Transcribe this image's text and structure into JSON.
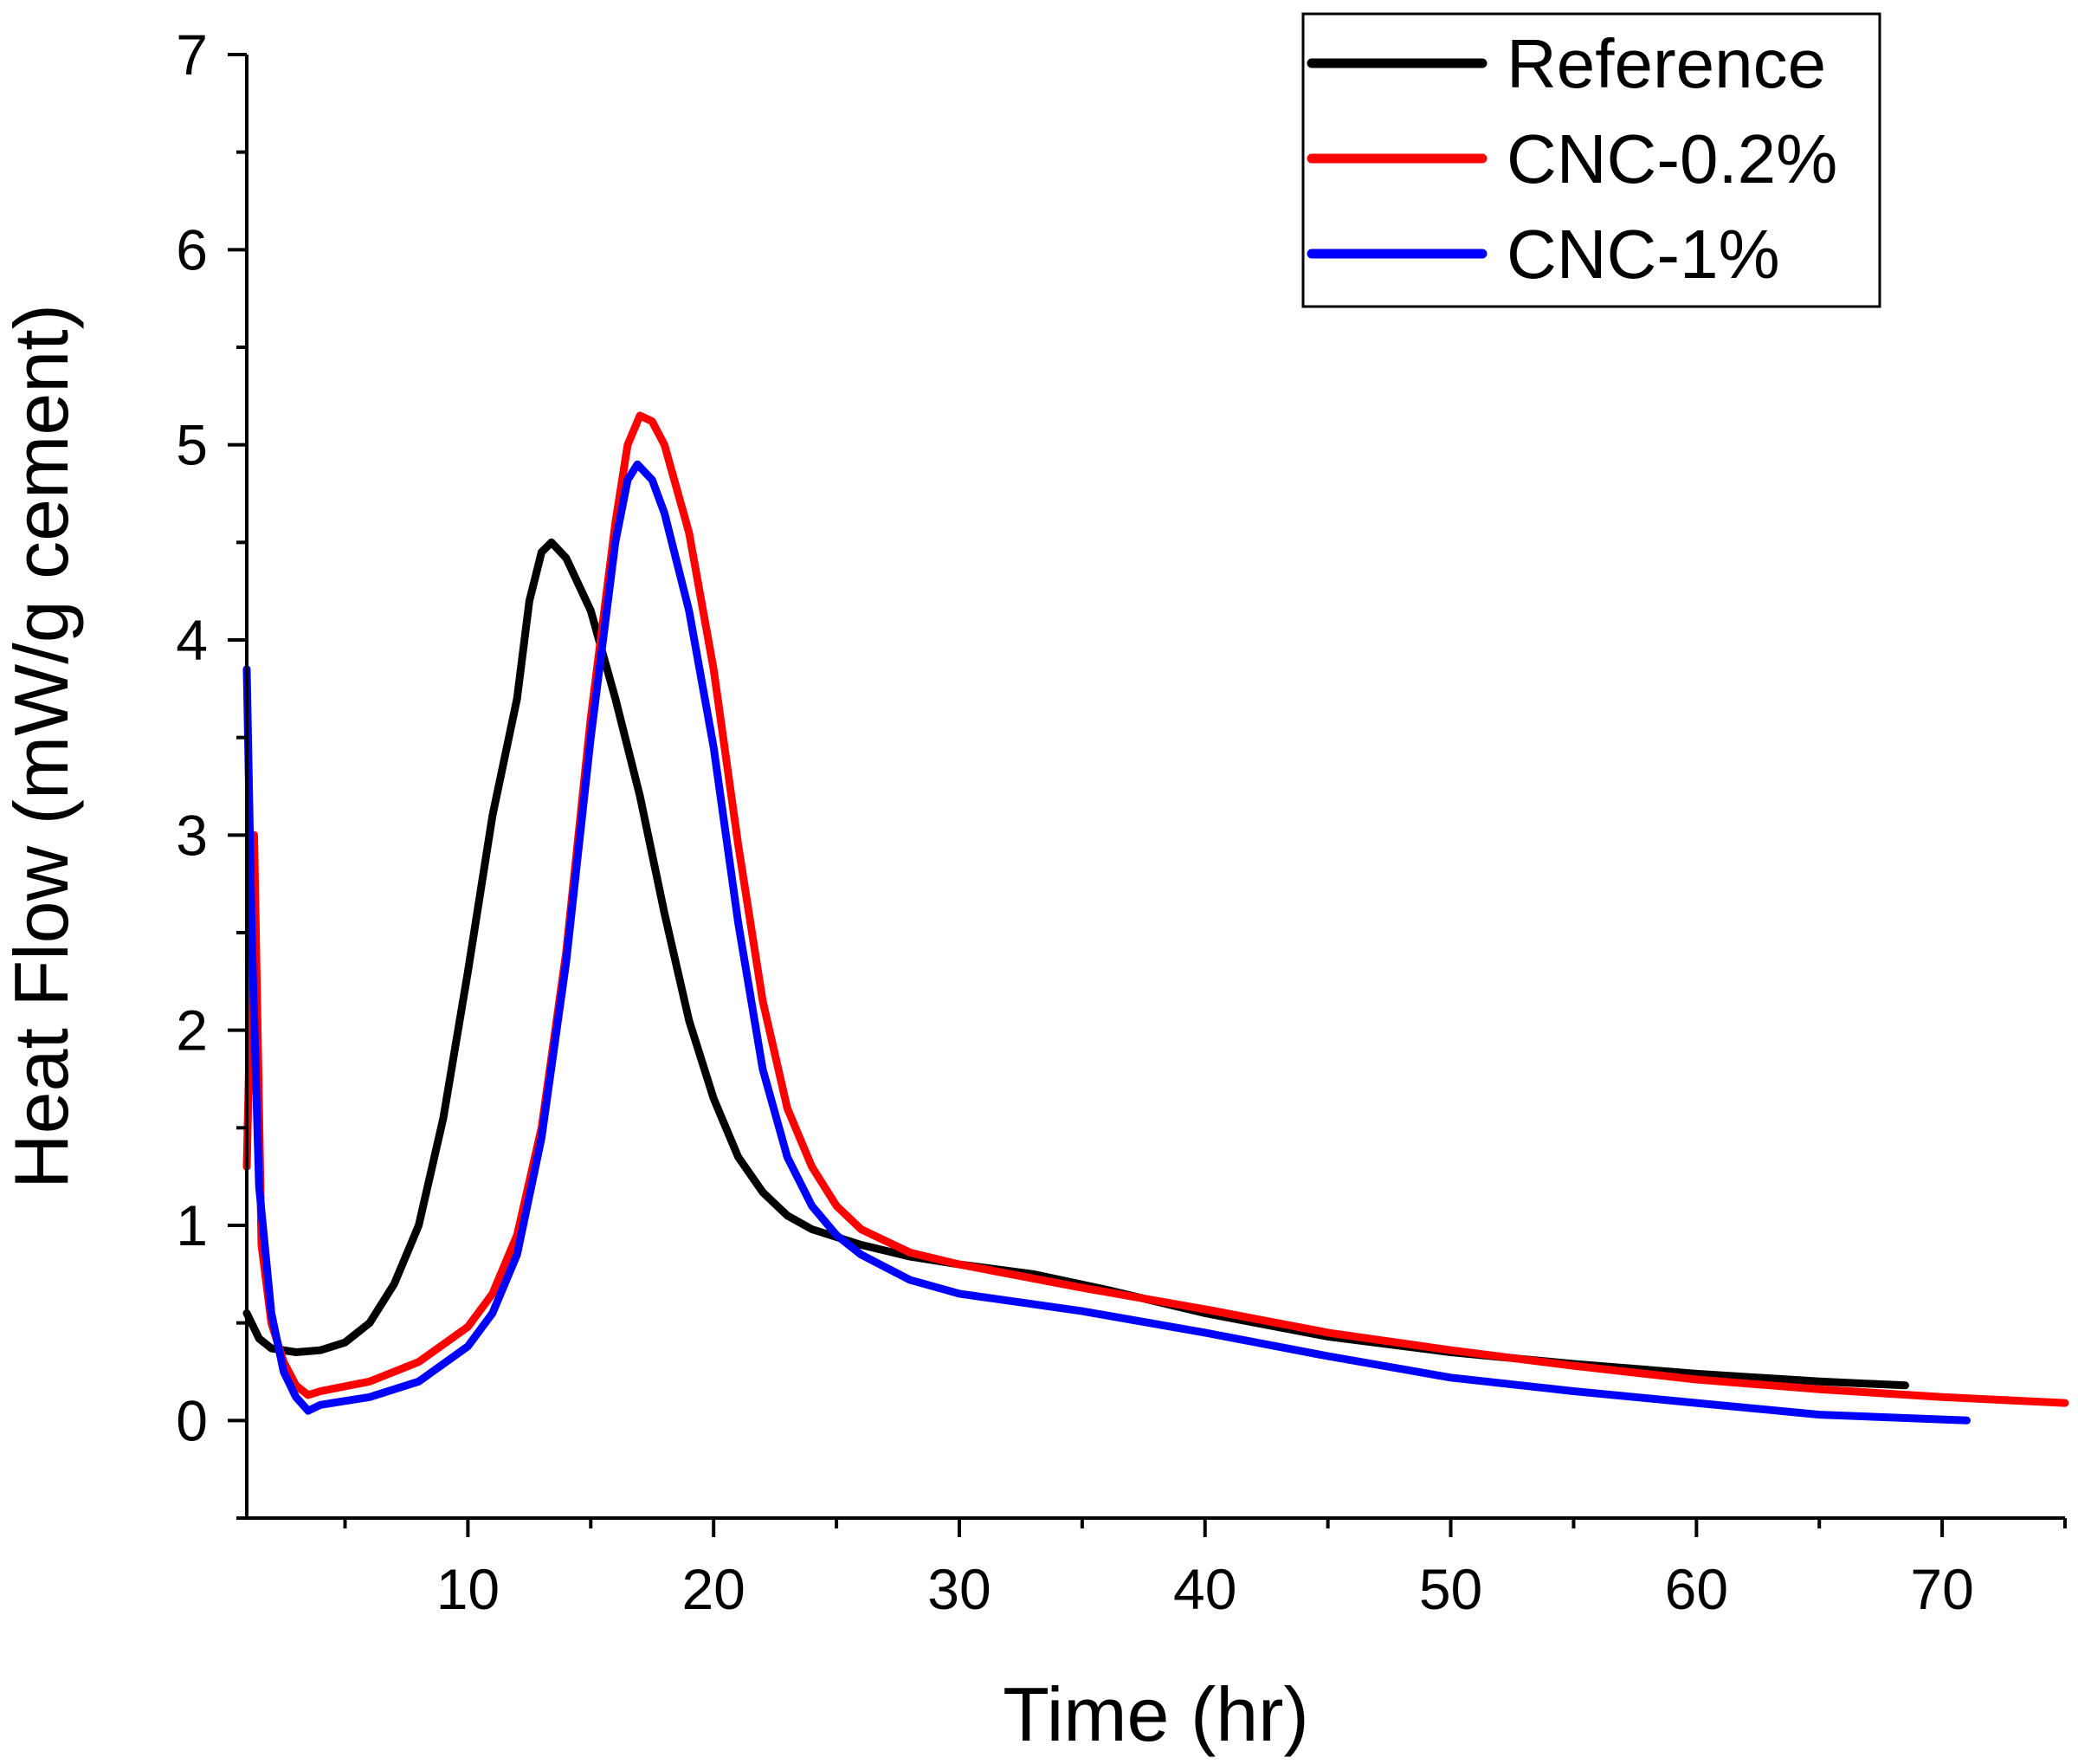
{
  "chart_data": {
    "type": "line",
    "title": "",
    "xlabel": "Time (hr)",
    "ylabel": "Heat Flow (mW/g cement)",
    "xlim": [
      1,
      75
    ],
    "ylim": [
      -0.5,
      7
    ],
    "x_ticks": [
      {
        "value": 10,
        "label": "10"
      },
      {
        "value": 20,
        "label": "20"
      },
      {
        "value": 30,
        "label": "30"
      },
      {
        "value": 40,
        "label": "40"
      },
      {
        "value": 50,
        "label": "50"
      },
      {
        "value": 60,
        "label": "60"
      },
      {
        "value": 70,
        "label": "70"
      }
    ],
    "y_ticks": [
      {
        "value": 0,
        "label": "0"
      },
      {
        "value": 1,
        "label": "1"
      },
      {
        "value": 2,
        "label": "2"
      },
      {
        "value": 3,
        "label": "3"
      },
      {
        "value": 4,
        "label": "4"
      },
      {
        "value": 5,
        "label": "5"
      },
      {
        "value": 6,
        "label": "6"
      },
      {
        "value": 7,
        "label": "7"
      }
    ],
    "x_minor_ticks": [
      5,
      15,
      25,
      35,
      45,
      55,
      65,
      75
    ],
    "y_minor_ticks": [
      -0.5,
      0.5,
      1.5,
      2.5,
      3.5,
      4.5,
      5.5,
      6.5
    ],
    "legend_position": "top-right",
    "series": [
      {
        "name": "Reference",
        "color": "#000000",
        "points": [
          [
            1,
            0.55
          ],
          [
            1.5,
            0.42
          ],
          [
            2,
            0.37
          ],
          [
            3,
            0.35
          ],
          [
            4,
            0.36
          ],
          [
            5,
            0.4
          ],
          [
            6,
            0.5
          ],
          [
            7,
            0.7
          ],
          [
            8,
            1.0
          ],
          [
            9,
            1.55
          ],
          [
            10,
            2.3
          ],
          [
            11,
            3.1
          ],
          [
            12,
            3.7
          ],
          [
            12.5,
            4.2
          ],
          [
            13,
            4.45
          ],
          [
            13.4,
            4.5
          ],
          [
            14,
            4.42
          ],
          [
            15,
            4.15
          ],
          [
            16,
            3.7
          ],
          [
            17,
            3.2
          ],
          [
            18,
            2.6
          ],
          [
            19,
            2.05
          ],
          [
            20,
            1.65
          ],
          [
            21,
            1.35
          ],
          [
            22,
            1.17
          ],
          [
            23,
            1.05
          ],
          [
            24,
            0.98
          ],
          [
            26,
            0.9
          ],
          [
            28,
            0.84
          ],
          [
            30,
            0.8
          ],
          [
            33,
            0.75
          ],
          [
            36,
            0.67
          ],
          [
            40,
            0.55
          ],
          [
            45,
            0.43
          ],
          [
            50,
            0.35
          ],
          [
            55,
            0.29
          ],
          [
            60,
            0.24
          ],
          [
            65,
            0.2
          ],
          [
            68.5,
            0.18
          ]
        ]
      },
      {
        "name": "CNC-0.2%",
        "color": "#ff0000",
        "points": [
          [
            1,
            1.3
          ],
          [
            1.3,
            3.0
          ],
          [
            1.6,
            0.9
          ],
          [
            2,
            0.5
          ],
          [
            2.5,
            0.3
          ],
          [
            3,
            0.18
          ],
          [
            3.5,
            0.13
          ],
          [
            4,
            0.15
          ],
          [
            6,
            0.2
          ],
          [
            8,
            0.3
          ],
          [
            10,
            0.48
          ],
          [
            11,
            0.65
          ],
          [
            12,
            0.95
          ],
          [
            13,
            1.5
          ],
          [
            14,
            2.4
          ],
          [
            15,
            3.6
          ],
          [
            16,
            4.6
          ],
          [
            16.5,
            5.0
          ],
          [
            17,
            5.15
          ],
          [
            17.5,
            5.12
          ],
          [
            18,
            5.0
          ],
          [
            19,
            4.55
          ],
          [
            20,
            3.85
          ],
          [
            21,
            2.95
          ],
          [
            22,
            2.15
          ],
          [
            23,
            1.6
          ],
          [
            24,
            1.3
          ],
          [
            25,
            1.1
          ],
          [
            26,
            0.98
          ],
          [
            28,
            0.86
          ],
          [
            30,
            0.8
          ],
          [
            35,
            0.68
          ],
          [
            40,
            0.57
          ],
          [
            45,
            0.45
          ],
          [
            50,
            0.36
          ],
          [
            55,
            0.28
          ],
          [
            60,
            0.21
          ],
          [
            65,
            0.16
          ],
          [
            70,
            0.12
          ],
          [
            75,
            0.09
          ]
        ]
      },
      {
        "name": "CNC-1%",
        "color": "#0000ff",
        "points": [
          [
            1,
            3.85
          ],
          [
            1.2,
            2.5
          ],
          [
            1.5,
            1.2
          ],
          [
            2,
            0.55
          ],
          [
            2.5,
            0.25
          ],
          [
            3,
            0.12
          ],
          [
            3.5,
            0.05
          ],
          [
            4,
            0.08
          ],
          [
            6,
            0.12
          ],
          [
            8,
            0.2
          ],
          [
            10,
            0.38
          ],
          [
            11,
            0.55
          ],
          [
            12,
            0.85
          ],
          [
            13,
            1.45
          ],
          [
            14,
            2.35
          ],
          [
            15,
            3.5
          ],
          [
            16,
            4.5
          ],
          [
            16.5,
            4.82
          ],
          [
            16.9,
            4.9
          ],
          [
            17.5,
            4.82
          ],
          [
            18,
            4.65
          ],
          [
            19,
            4.15
          ],
          [
            20,
            3.45
          ],
          [
            21,
            2.55
          ],
          [
            22,
            1.8
          ],
          [
            23,
            1.35
          ],
          [
            24,
            1.1
          ],
          [
            25,
            0.95
          ],
          [
            26,
            0.85
          ],
          [
            28,
            0.72
          ],
          [
            30,
            0.65
          ],
          [
            35,
            0.56
          ],
          [
            40,
            0.45
          ],
          [
            45,
            0.33
          ],
          [
            50,
            0.22
          ],
          [
            55,
            0.15
          ],
          [
            60,
            0.09
          ],
          [
            65,
            0.03
          ],
          [
            71,
            0.0
          ]
        ]
      }
    ]
  }
}
